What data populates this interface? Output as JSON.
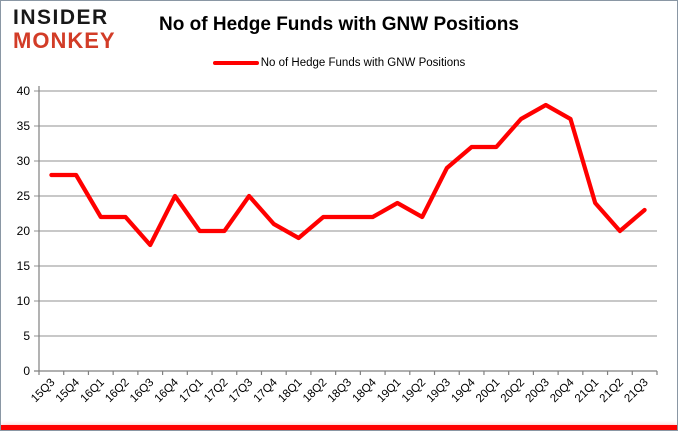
{
  "header": {
    "logo_line1": "INSIDER",
    "logo_line2": "MONKEY",
    "title": "No of Hedge Funds with GNW Positions"
  },
  "legend": {
    "label": "No of Hedge Funds with GNW Positions"
  },
  "colors": {
    "line": "#FF0000",
    "logo_black": "#181818",
    "logo_red": "#D23C27",
    "grid": "#A6A6A6",
    "axis": "#808080",
    "tick_text": "#000000",
    "bottom_bar": "#FF0000"
  },
  "chart_data": {
    "type": "line",
    "title": "No of Hedge Funds with GNW Positions",
    "categories": [
      "15Q3",
      "15Q4",
      "16Q1",
      "16Q2",
      "16Q3",
      "16Q4",
      "17Q1",
      "17Q2",
      "17Q3",
      "17Q4",
      "18Q1",
      "18Q2",
      "18Q3",
      "18Q4",
      "19Q1",
      "19Q2",
      "19Q3",
      "19Q4",
      "20Q1",
      "20Q2",
      "20Q3",
      "20Q4",
      "21Q1",
      "21Q2",
      "21Q3"
    ],
    "series": [
      {
        "name": "No of Hedge Funds with GNW Positions",
        "values": [
          28,
          28,
          22,
          22,
          18,
          25,
          20,
          20,
          25,
          21,
          19,
          22,
          22,
          22,
          24,
          22,
          29,
          32,
          32,
          36,
          38,
          36,
          24,
          20,
          23
        ]
      }
    ],
    "xlabel": "",
    "ylabel": "",
    "ylim": [
      0,
      40
    ],
    "ytick_step": 5,
    "grid": "horizontal",
    "legend_position": "top-center"
  }
}
